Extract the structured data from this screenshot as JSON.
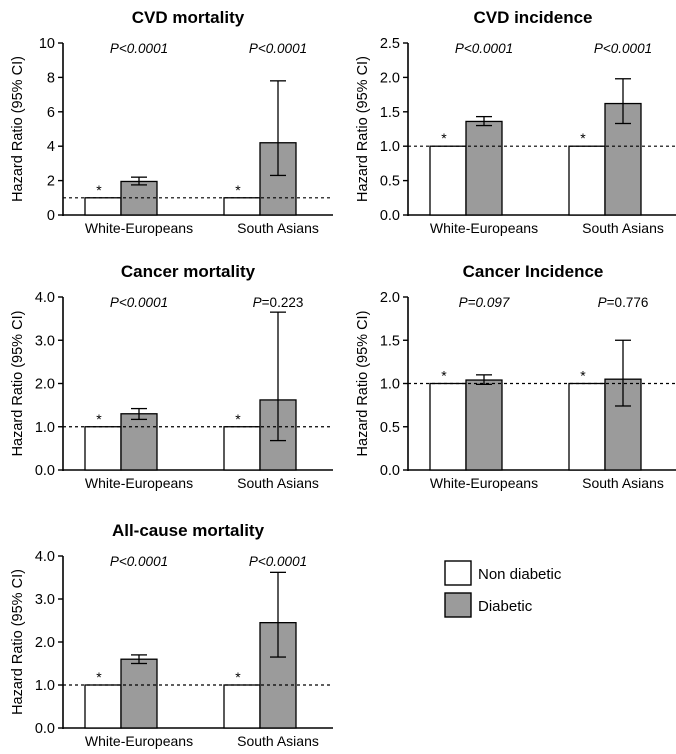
{
  "chart_data": [
    {
      "type": "bar",
      "title": "CVD mortality",
      "ylabel": "Hazard Ratio (95% CI)",
      "ylim": [
        0,
        10
      ],
      "yticks": [
        "0",
        "2",
        "4",
        "6",
        "8",
        "10"
      ],
      "yticks_values": [
        0,
        2,
        4,
        6,
        8,
        10
      ],
      "reference_line": 1,
      "categories": [
        "White-Europeans",
        "South Asians"
      ],
      "p_values": [
        {
          "prefix": "P",
          "text": "<0.0001",
          "italic_all": true
        },
        {
          "prefix": "P",
          "text": "<0.0001",
          "italic_all": true
        }
      ],
      "series": [
        {
          "name": "Non diabetic",
          "values": [
            1,
            1
          ],
          "ci_low": [
            1,
            1
          ],
          "ci_high": [
            1,
            1
          ],
          "marker": "*"
        },
        {
          "name": "Diabetic",
          "values": [
            1.95,
            4.2
          ],
          "ci_low": [
            1.75,
            2.3
          ],
          "ci_high": [
            2.2,
            7.8
          ]
        }
      ]
    },
    {
      "type": "bar",
      "title": "CVD incidence",
      "ylabel": "Hazard Ratio (95% CI)",
      "ylim": [
        0,
        2.5
      ],
      "yticks": [
        "0.0",
        "0.5",
        "1.0",
        "1.5",
        "2.0",
        "2.5"
      ],
      "yticks_values": [
        0,
        0.5,
        1,
        1.5,
        2,
        2.5
      ],
      "reference_line": 1,
      "categories": [
        "White-Europeans",
        "South Asians"
      ],
      "p_values": [
        {
          "prefix": "P",
          "text": "<0.0001",
          "italic_all": true
        },
        {
          "prefix": "P",
          "text": "<0.0001",
          "italic_all": true
        }
      ],
      "series": [
        {
          "name": "Non diabetic",
          "values": [
            1,
            1
          ],
          "ci_low": [
            1,
            1
          ],
          "ci_high": [
            1,
            1
          ],
          "marker": "*"
        },
        {
          "name": "Diabetic",
          "values": [
            1.36,
            1.62
          ],
          "ci_low": [
            1.3,
            1.33
          ],
          "ci_high": [
            1.43,
            1.98
          ]
        }
      ]
    },
    {
      "type": "bar",
      "title": "Cancer mortality",
      "ylabel": "Hazard Ratio (95% CI)",
      "ylim": [
        0,
        4
      ],
      "yticks": [
        "0.0",
        "1.0",
        "2.0",
        "3.0",
        "4.0"
      ],
      "yticks_values": [
        0,
        1,
        2,
        3,
        4
      ],
      "reference_line": 1,
      "categories": [
        "White-Europeans",
        "South Asians"
      ],
      "p_values": [
        {
          "prefix": "P",
          "text": "<0.0001",
          "italic_all": true
        },
        {
          "prefix": "P",
          "text": "=0.223",
          "italic_all": false
        }
      ],
      "series": [
        {
          "name": "Non diabetic",
          "values": [
            1,
            1
          ],
          "ci_low": [
            1,
            1
          ],
          "ci_high": [
            1,
            1
          ],
          "marker": "*"
        },
        {
          "name": "Diabetic",
          "values": [
            1.3,
            1.62
          ],
          "ci_low": [
            1.17,
            0.68
          ],
          "ci_high": [
            1.42,
            3.65
          ]
        }
      ]
    },
    {
      "type": "bar",
      "title": "Cancer Incidence",
      "ylabel": "Hazard Ratio (95% CI)",
      "ylim": [
        0,
        2
      ],
      "yticks": [
        "0.0",
        "0.5",
        "1.0",
        "1.5",
        "2.0"
      ],
      "yticks_values": [
        0,
        0.5,
        1,
        1.5,
        2
      ],
      "reference_line": 1,
      "categories": [
        "White-Europeans",
        "South Asians"
      ],
      "p_values": [
        {
          "prefix": "P",
          "text": "=0.097",
          "italic_all": true
        },
        {
          "prefix": "P",
          "text": "=0.776",
          "italic_all": false
        }
      ],
      "series": [
        {
          "name": "Non diabetic",
          "values": [
            1,
            1
          ],
          "ci_low": [
            1,
            1
          ],
          "ci_high": [
            1,
            1
          ],
          "marker": "*"
        },
        {
          "name": "Diabetic",
          "values": [
            1.04,
            1.05
          ],
          "ci_low": [
            0.99,
            0.74
          ],
          "ci_high": [
            1.1,
            1.5
          ]
        }
      ]
    },
    {
      "type": "bar",
      "title": "All-cause mortality",
      "ylabel": "Hazard Ratio (95% CI)",
      "ylim": [
        0,
        4
      ],
      "yticks": [
        "0.0",
        "1.0",
        "2.0",
        "3.0",
        "4.0"
      ],
      "yticks_values": [
        0,
        1,
        2,
        3,
        4
      ],
      "reference_line": 1,
      "categories": [
        "White-Europeans",
        "South Asians"
      ],
      "p_values": [
        {
          "prefix": "P",
          "text": "<0.0001",
          "italic_all": true
        },
        {
          "prefix": "P",
          "text": "<0.0001",
          "italic_all": true
        }
      ],
      "series": [
        {
          "name": "Non diabetic",
          "values": [
            1,
            1
          ],
          "ci_low": [
            1,
            1
          ],
          "ci_high": [
            1,
            1
          ],
          "marker": "*"
        },
        {
          "name": "Diabetic",
          "values": [
            1.6,
            2.45
          ],
          "ci_low": [
            1.5,
            1.65
          ],
          "ci_high": [
            1.7,
            3.62
          ]
        }
      ]
    }
  ],
  "legend": {
    "items": [
      {
        "label": "Non diabetic",
        "color": "#ffffff"
      },
      {
        "label": "Diabetic",
        "color": "#9b9b9b"
      }
    ]
  },
  "colors": {
    "non_diabetic": "#ffffff",
    "diabetic": "#9b9b9b",
    "stroke": "#000000"
  }
}
